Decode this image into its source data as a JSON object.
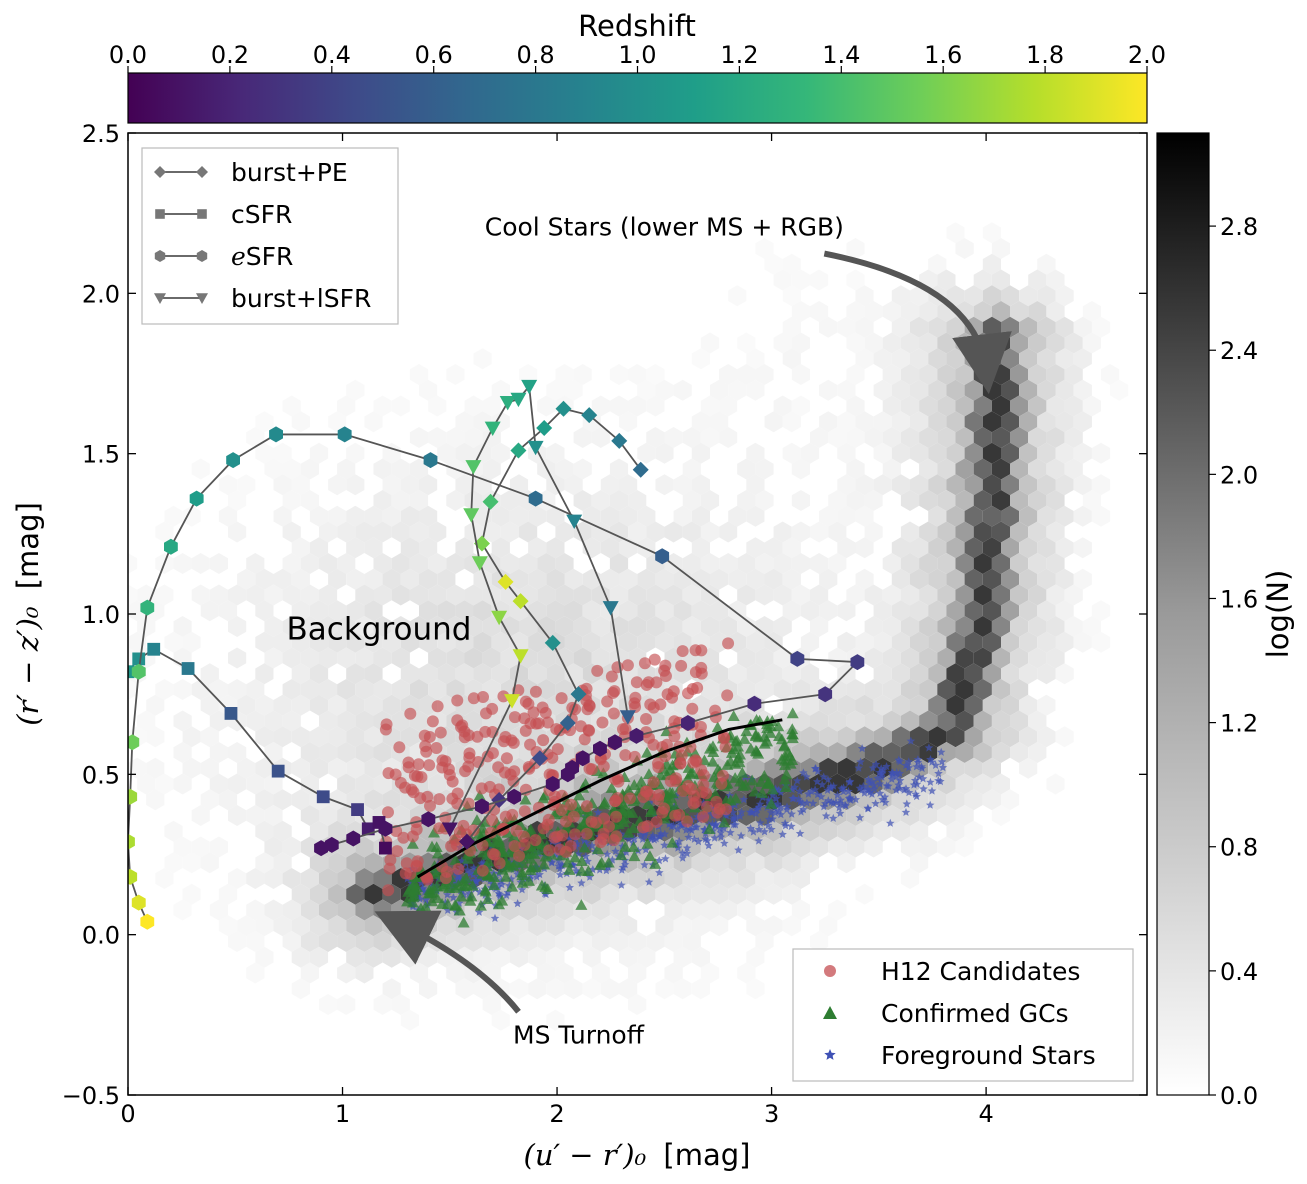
{
  "chart_data": {
    "type": "scatter",
    "title": "",
    "xlabel": "(u′ − r′)₀ [mag]",
    "xlabel_parts": {
      "math": "(u′ − r′)₀",
      "unit": "[mag]"
    },
    "ylabel": "(r′ − z′)₀ [mag]",
    "ylabel_parts": {
      "math": "(r′ − z′)₀",
      "unit": "[mag]"
    },
    "xlim": [
      0,
      4.75
    ],
    "ylim": [
      -0.5,
      2.5
    ],
    "xticks": [
      0,
      1,
      2,
      3,
      4
    ],
    "xtick_labels": [
      "0",
      "1",
      "2",
      "3",
      "4"
    ],
    "yticks": [
      -0.5,
      0.0,
      0.5,
      1.0,
      1.5,
      2.0,
      2.5
    ],
    "ytick_labels": [
      "−0.5",
      "0.0",
      "0.5",
      "1.0",
      "1.5",
      "2.0",
      "2.5"
    ],
    "redshift_colorbar": {
      "label": "Redshift",
      "range": [
        0,
        2
      ],
      "ticks": [
        0,
        0.2,
        0.4,
        0.6,
        0.8,
        1.0,
        1.2,
        1.4,
        1.6,
        1.8,
        2.0
      ],
      "tick_labels": [
        "0.0",
        "0.2",
        "0.4",
        "0.6",
        "0.8",
        "1.0",
        "1.2",
        "1.4",
        "1.6",
        "1.8",
        "2.0"
      ],
      "colormap": [
        "#440154",
        "#482878",
        "#3e4a89",
        "#31688e",
        "#26828e",
        "#1f9e89",
        "#35b779",
        "#6ece58",
        "#b5de2b",
        "#fde725"
      ]
    },
    "density_colorbar": {
      "label": "log(N)",
      "range": [
        0,
        3.1
      ],
      "ticks": [
        0.0,
        0.4,
        0.8,
        1.2,
        1.6,
        2.0,
        2.4,
        2.8
      ],
      "tick_labels": [
        "0.0",
        "0.4",
        "0.8",
        "1.2",
        "1.6",
        "2.0",
        "2.4",
        "2.8"
      ]
    },
    "tracks": [
      {
        "name": "burst+PE",
        "marker": "diamond",
        "x": [
          1.58,
          1.73,
          1.92,
          2.05,
          2.1,
          1.98,
          1.83,
          1.76,
          1.65,
          1.69,
          1.82,
          1.94,
          2.03,
          2.15,
          2.29,
          2.39
        ],
        "y": [
          0.29,
          0.42,
          0.55,
          0.66,
          0.75,
          0.91,
          1.04,
          1.1,
          1.22,
          1.35,
          1.51,
          1.58,
          1.64,
          1.62,
          1.54,
          1.45
        ],
        "z": [
          0.1,
          0.3,
          0.45,
          0.62,
          0.8,
          1.0,
          1.8,
          1.9,
          1.6,
          1.4,
          1.2,
          1.1,
          1.0,
          0.9,
          0.8,
          0.7
        ]
      },
      {
        "name": "cSFR",
        "marker": "square",
        "x": [
          0.0,
          0.05,
          0.12,
          0.28,
          0.48,
          0.7,
          0.91,
          1.07,
          1.12,
          1.17,
          1.2
        ],
        "y": [
          0.82,
          0.86,
          0.89,
          0.83,
          0.69,
          0.51,
          0.43,
          0.39,
          0.33,
          0.35,
          0.27
        ],
        "z": [
          1.05,
          1.0,
          0.9,
          0.8,
          0.55,
          0.5,
          0.45,
          0.35,
          0.15,
          0.1,
          0.05
        ]
      },
      {
        "name": "eSFR",
        "marker": "hexagon",
        "x": [
          0.09,
          0.05,
          0.01,
          0.0,
          0.01,
          0.02,
          0.05,
          0.09,
          0.2,
          0.32,
          0.49,
          0.69,
          1.01,
          1.41,
          1.9,
          2.49,
          3.12,
          3.4,
          3.25,
          2.92,
          2.61,
          2.37,
          2.27,
          2.2,
          2.12,
          2.07,
          2.05,
          1.98,
          1.8,
          1.65,
          1.4,
          1.2,
          1.05,
          0.95,
          0.9
        ],
        "y": [
          0.04,
          0.1,
          0.18,
          0.29,
          0.43,
          0.6,
          0.82,
          1.02,
          1.21,
          1.36,
          1.48,
          1.56,
          1.56,
          1.48,
          1.36,
          1.18,
          0.86,
          0.85,
          0.75,
          0.72,
          0.66,
          0.62,
          0.6,
          0.58,
          0.55,
          0.52,
          0.5,
          0.47,
          0.43,
          0.4,
          0.36,
          0.33,
          0.3,
          0.28,
          0.27
        ],
        "z": [
          2.0,
          1.9,
          1.8,
          1.75,
          1.7,
          1.55,
          1.45,
          1.3,
          1.2,
          1.1,
          1.0,
          0.95,
          0.9,
          0.8,
          0.7,
          0.6,
          0.4,
          0.35,
          0.3,
          0.25,
          0.2,
          0.15,
          0.1,
          0.1,
          0.1,
          0.1,
          0.1,
          0.1,
          0.1,
          0.1,
          0.1,
          0.1,
          0.1,
          0.1,
          0.1
        ]
      },
      {
        "name": "burst+lSFR",
        "marker": "triangle_down",
        "x": [
          1.5,
          1.79,
          1.83,
          1.73,
          1.64,
          1.6,
          1.61,
          1.7,
          1.77,
          1.82,
          1.87,
          1.9,
          2.08,
          2.25,
          2.33
        ],
        "y": [
          0.33,
          0.73,
          0.87,
          0.99,
          1.16,
          1.31,
          1.46,
          1.58,
          1.66,
          1.67,
          1.71,
          1.52,
          1.29,
          1.02,
          0.68
        ],
        "z": [
          0.1,
          1.85,
          1.8,
          1.65,
          1.55,
          1.5,
          1.45,
          1.3,
          1.25,
          1.2,
          1.15,
          1.0,
          0.9,
          0.8,
          0.6
        ]
      }
    ],
    "populations": [
      {
        "name": "H12 Candidates",
        "marker": "circle",
        "color": "#c44e52",
        "center": [
          1.8,
          0.48
        ],
        "spread": [
          0.45,
          0.18
        ]
      },
      {
        "name": "Confirmed GCs",
        "marker": "triangle",
        "color": "#2e7d32",
        "center": [
          2.0,
          0.45
        ],
        "spread": [
          0.5,
          0.15
        ]
      },
      {
        "name": "Foreground Stars",
        "marker": "star",
        "color": "#3f51b5",
        "center": [
          2.2,
          0.28
        ],
        "spread": [
          0.9,
          0.08
        ]
      }
    ],
    "ridge_line": {
      "x": [
        1.35,
        1.6,
        1.9,
        2.2,
        2.5,
        2.8,
        3.05
      ],
      "y": [
        0.18,
        0.28,
        0.38,
        0.48,
        0.57,
        0.64,
        0.67
      ]
    },
    "annotations": [
      {
        "text": "Cool Stars (lower MS + RGB)",
        "x": 2.5,
        "y": 2.18,
        "arrow_to": [
          4.0,
          1.76
        ]
      },
      {
        "text": "MS Turnoff",
        "x": 2.1,
        "y": -0.34,
        "arrow_to": [
          1.25,
          0.04
        ]
      },
      {
        "text": "Background",
        "x": 1.17,
        "y": 0.92
      }
    ],
    "legend_tracks": {
      "placement": "top-left",
      "entries": [
        {
          "label": "burst+PE"
        },
        {
          "label": "cSFR"
        },
        {
          "label_italic": "e",
          "label": "SFR"
        },
        {
          "label": "burst+lSFR"
        }
      ]
    },
    "legend_populations": {
      "placement": "bottom-right",
      "entries": [
        {
          "label": "H12 Candidates"
        },
        {
          "label": "Confirmed GCs"
        },
        {
          "label": "Foreground Stars"
        }
      ]
    }
  }
}
